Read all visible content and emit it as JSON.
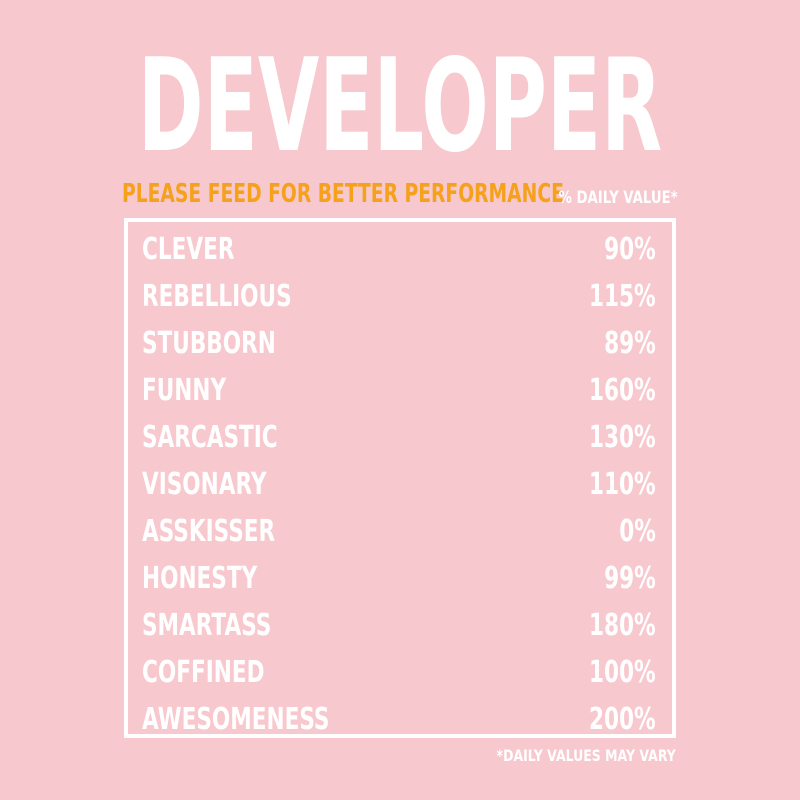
{
  "title": "DEVELOPER",
  "subtitle": "PLEASE FEED FOR BETTER PERFORMANCE",
  "daily_value_header": "% DAILY VALUE*",
  "facts": [
    {
      "name": "CLEVER",
      "value": "90%"
    },
    {
      "name": "REBELLIOUS",
      "value": "115%"
    },
    {
      "name": "STUBBORN",
      "value": "89%"
    },
    {
      "name": "FUNNY",
      "value": "160%"
    },
    {
      "name": "SARCASTIC",
      "value": "130%"
    },
    {
      "name": "VISONARY",
      "value": "110%"
    },
    {
      "name": "ASSKISSER",
      "value": "0%"
    },
    {
      "name": "HONESTY",
      "value": "99%"
    },
    {
      "name": "SMARTASS",
      "value": "180%"
    },
    {
      "name": "COFFINED",
      "value": "100%"
    },
    {
      "name": "AWESOMENESS",
      "value": "200%"
    }
  ],
  "footnote": "*DAILY VALUES MAY VARY",
  "colors": {
    "background": "#f7c8cd",
    "text": "#ffffff",
    "accent": "#f5a11c"
  }
}
